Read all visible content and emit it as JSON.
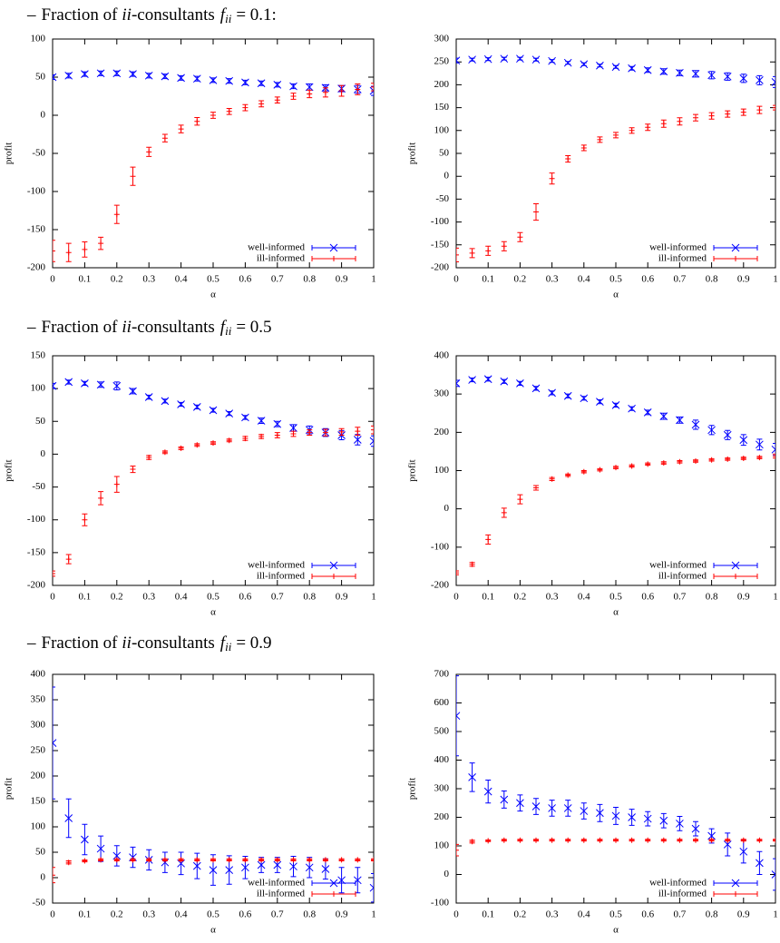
{
  "headings": [
    {
      "parts": [
        "–",
        "Fraction of",
        "ii",
        "-consultants",
        "f",
        "ii",
        "= 0.1:"
      ]
    },
    {
      "parts": [
        "–",
        "Fraction of",
        "ii",
        "-consultants",
        "f",
        "ii",
        "= 0.5"
      ]
    },
    {
      "parts": [
        "–",
        "Fraction of",
        "ii",
        "-consultants",
        "f",
        "ii",
        "= 0.9"
      ]
    }
  ],
  "chart_data": [
    {
      "type": "errorbar",
      "x_label": "α",
      "y_label": "profit",
      "legend": "lower right",
      "x": [
        0,
        0.05,
        0.1,
        0.15,
        0.2,
        0.25,
        0.3,
        0.35,
        0.4,
        0.45,
        0.5,
        0.55,
        0.6,
        0.65,
        0.7,
        0.75,
        0.8,
        0.85,
        0.9,
        0.95,
        1
      ],
      "xlim": [
        0,
        1
      ],
      "xticks": [
        0,
        0.1,
        0.2,
        0.3,
        0.4,
        0.5,
        0.6,
        0.7,
        0.8,
        0.9,
        1
      ],
      "ylim": [
        -200,
        100
      ],
      "yticks": [
        -200,
        -150,
        -100,
        -50,
        0,
        50,
        100
      ],
      "series": [
        {
          "name": "well-informed",
          "color": "#0000ff",
          "marker": "x",
          "values": [
            50,
            52,
            54,
            55,
            55,
            54,
            52,
            51,
            49,
            48,
            46,
            45,
            43,
            42,
            40,
            38,
            37,
            36,
            35,
            34,
            32
          ],
          "errors": [
            3,
            3,
            3,
            3,
            3,
            3,
            3,
            3,
            3,
            3,
            3,
            3,
            3,
            3,
            3,
            3,
            4,
            4,
            4,
            5,
            6
          ]
        },
        {
          "name": "ill-informed",
          "color": "#ff0000",
          "marker": "+",
          "values": [
            -178,
            -180,
            -176,
            -168,
            -130,
            -80,
            -48,
            -30,
            -18,
            -8,
            0,
            5,
            10,
            15,
            20,
            25,
            28,
            30,
            32,
            34,
            37
          ],
          "errors": [
            14,
            12,
            10,
            8,
            12,
            12,
            6,
            5,
            5,
            5,
            4,
            4,
            4,
            4,
            4,
            4,
            5,
            6,
            7,
            7,
            5
          ]
        }
      ]
    },
    {
      "type": "errorbar",
      "x_label": "α",
      "y_label": "profit",
      "legend": "lower right",
      "x": [
        0,
        0.05,
        0.1,
        0.15,
        0.2,
        0.25,
        0.3,
        0.35,
        0.4,
        0.45,
        0.5,
        0.55,
        0.6,
        0.65,
        0.7,
        0.75,
        0.8,
        0.85,
        0.9,
        0.95,
        1
      ],
      "xlim": [
        0,
        1
      ],
      "xticks": [
        0,
        0.1,
        0.2,
        0.3,
        0.4,
        0.5,
        0.6,
        0.7,
        0.8,
        0.9,
        1
      ],
      "ylim": [
        -200,
        300
      ],
      "yticks": [
        -200,
        -150,
        -100,
        -50,
        0,
        50,
        100,
        150,
        200,
        250,
        300
      ],
      "series": [
        {
          "name": "well-informed",
          "color": "#0000ff",
          "marker": "x",
          "values": [
            253,
            255,
            256,
            257,
            257,
            255,
            252,
            248,
            245,
            242,
            239,
            236,
            232,
            229,
            226,
            224,
            221,
            218,
            214,
            210,
            206
          ],
          "errors": [
            5,
            3,
            3,
            3,
            3,
            3,
            3,
            3,
            3,
            3,
            3,
            4,
            5,
            6,
            6,
            7,
            8,
            8,
            9,
            10,
            12
          ]
        },
        {
          "name": "ill-informed",
          "color": "#ff0000",
          "marker": "+",
          "values": [
            -172,
            -168,
            -163,
            -153,
            -133,
            -78,
            -5,
            38,
            62,
            80,
            90,
            100,
            107,
            115,
            120,
            128,
            132,
            136,
            140,
            145,
            150
          ],
          "errors": [
            15,
            10,
            10,
            10,
            10,
            18,
            12,
            7,
            6,
            6,
            6,
            6,
            7,
            8,
            8,
            7,
            7,
            7,
            7,
            8,
            5
          ]
        }
      ]
    },
    {
      "type": "errorbar",
      "x_label": "α",
      "y_label": "profit",
      "legend": "lower right",
      "x": [
        0,
        0.05,
        0.1,
        0.15,
        0.2,
        0.25,
        0.3,
        0.35,
        0.4,
        0.45,
        0.5,
        0.55,
        0.6,
        0.65,
        0.7,
        0.75,
        0.8,
        0.85,
        0.9,
        0.95,
        1
      ],
      "xlim": [
        0,
        1
      ],
      "xticks": [
        0,
        0.1,
        0.2,
        0.3,
        0.4,
        0.5,
        0.6,
        0.7,
        0.8,
        0.9,
        1
      ],
      "ylim": [
        -200,
        150
      ],
      "yticks": [
        -200,
        -150,
        -100,
        -50,
        0,
        50,
        100,
        150
      ],
      "series": [
        {
          "name": "well-informed",
          "color": "#0000ff",
          "marker": "x",
          "values": [
            104,
            110,
            108,
            106,
            104,
            96,
            87,
            81,
            76,
            72,
            67,
            62,
            56,
            51,
            46,
            40,
            37,
            33,
            29,
            22,
            20
          ],
          "errors": [
            4,
            3,
            3,
            4,
            6,
            4,
            3,
            3,
            3,
            3,
            3,
            3,
            3,
            4,
            4,
            5,
            6,
            6,
            7,
            8,
            8
          ]
        },
        {
          "name": "ill-informed",
          "color": "#ff0000",
          "marker": "+",
          "values": [
            -182,
            -160,
            -100,
            -67,
            -46,
            -23,
            -5,
            3,
            9,
            14,
            17,
            21,
            24,
            27,
            29,
            31,
            33,
            33,
            34,
            35,
            37
          ],
          "errors": [
            4,
            7,
            9,
            10,
            12,
            5,
            3,
            2,
            2,
            2,
            2,
            2,
            3,
            3,
            4,
            4,
            4,
            5,
            5,
            6,
            6
          ]
        }
      ]
    },
    {
      "type": "errorbar",
      "x_label": "α",
      "y_label": "profit",
      "legend": "lower right",
      "x": [
        0,
        0.05,
        0.1,
        0.15,
        0.2,
        0.25,
        0.3,
        0.35,
        0.4,
        0.45,
        0.5,
        0.55,
        0.6,
        0.65,
        0.7,
        0.75,
        0.8,
        0.85,
        0.9,
        0.95,
        1
      ],
      "xlim": [
        0,
        1
      ],
      "xticks": [
        0,
        0.1,
        0.2,
        0.3,
        0.4,
        0.5,
        0.6,
        0.7,
        0.8,
        0.9,
        1
      ],
      "ylim": [
        -200,
        400
      ],
      "yticks": [
        -200,
        -100,
        0,
        100,
        200,
        300,
        400
      ],
      "series": [
        {
          "name": "well-informed",
          "color": "#0000ff",
          "marker": "x",
          "values": [
            328,
            337,
            339,
            333,
            328,
            315,
            303,
            295,
            289,
            280,
            271,
            262,
            252,
            242,
            232,
            220,
            206,
            193,
            180,
            168,
            155
          ],
          "errors": [
            8,
            5,
            5,
            5,
            5,
            5,
            5,
            5,
            5,
            5,
            5,
            5,
            6,
            8,
            8,
            12,
            12,
            12,
            14,
            14,
            16
          ]
        },
        {
          "name": "ill-informed",
          "color": "#ff0000",
          "marker": "+",
          "values": [
            -167,
            -145,
            -80,
            -10,
            25,
            55,
            78,
            88,
            97,
            102,
            108,
            112,
            117,
            120,
            123,
            125,
            128,
            130,
            132,
            134,
            138
          ],
          "errors": [
            5,
            5,
            12,
            12,
            12,
            6,
            4,
            3,
            3,
            3,
            3,
            3,
            3,
            3,
            3,
            3,
            3,
            3,
            3,
            3,
            5
          ]
        }
      ]
    },
    {
      "type": "errorbar",
      "x_label": "α",
      "y_label": "profit",
      "legend": "lower right",
      "x": [
        0,
        0.05,
        0.1,
        0.15,
        0.2,
        0.25,
        0.3,
        0.35,
        0.4,
        0.45,
        0.5,
        0.55,
        0.6,
        0.65,
        0.7,
        0.75,
        0.8,
        0.85,
        0.9,
        0.95,
        1
      ],
      "xlim": [
        0,
        1
      ],
      "xticks": [
        0,
        0.1,
        0.2,
        0.3,
        0.4,
        0.5,
        0.6,
        0.7,
        0.8,
        0.9,
        1
      ],
      "ylim": [
        -50,
        400
      ],
      "yticks": [
        -50,
        0,
        50,
        100,
        150,
        200,
        250,
        300,
        350,
        400
      ],
      "series": [
        {
          "name": "well-informed",
          "color": "#0000ff",
          "marker": "x",
          "values": [
            265,
            117,
            75,
            57,
            43,
            40,
            35,
            30,
            28,
            23,
            15,
            15,
            20,
            25,
            25,
            22,
            20,
            17,
            -5,
            -5,
            -20
          ],
          "errors": [
            110,
            38,
            30,
            25,
            20,
            20,
            20,
            20,
            22,
            25,
            30,
            28,
            22,
            15,
            15,
            20,
            20,
            20,
            25,
            25,
            28
          ]
        },
        {
          "name": "ill-informed",
          "color": "#ff0000",
          "marker": "+",
          "values": [
            5,
            30,
            33,
            35,
            35,
            35,
            35,
            35,
            35,
            35,
            35,
            35,
            35,
            35,
            35,
            35,
            35,
            35,
            35,
            35,
            35
          ],
          "errors": [
            15,
            3,
            2,
            2,
            2,
            2,
            2,
            2,
            2,
            2,
            2,
            2,
            2,
            2,
            2,
            2,
            2,
            2,
            2,
            2,
            2
          ]
        }
      ]
    },
    {
      "type": "errorbar",
      "x_label": "α",
      "y_label": "profit",
      "legend": "lower right",
      "x": [
        0,
        0.05,
        0.1,
        0.15,
        0.2,
        0.25,
        0.3,
        0.35,
        0.4,
        0.45,
        0.5,
        0.55,
        0.6,
        0.65,
        0.7,
        0.75,
        0.8,
        0.85,
        0.9,
        0.95,
        1
      ],
      "xlim": [
        0,
        1
      ],
      "xticks": [
        0,
        0.1,
        0.2,
        0.3,
        0.4,
        0.5,
        0.6,
        0.7,
        0.8,
        0.9,
        1
      ],
      "ylim": [
        -100,
        700
      ],
      "yticks": [
        -100,
        0,
        100,
        200,
        300,
        400,
        500,
        600,
        700
      ],
      "series": [
        {
          "name": "well-informed",
          "color": "#0000ff",
          "marker": "x",
          "values": [
            555,
            340,
            290,
            262,
            250,
            238,
            232,
            232,
            222,
            215,
            205,
            200,
            195,
            188,
            178,
            160,
            135,
            105,
            80,
            40,
            0
          ],
          "errors": [
            140,
            50,
            40,
            30,
            28,
            28,
            28,
            28,
            28,
            30,
            30,
            28,
            25,
            25,
            25,
            25,
            25,
            40,
            40,
            40,
            55
          ]
        },
        {
          "name": "ill-informed",
          "color": "#ff0000",
          "marker": "+",
          "values": [
            85,
            115,
            118,
            120,
            120,
            120,
            120,
            120,
            120,
            120,
            120,
            120,
            120,
            120,
            120,
            120,
            120,
            120,
            120,
            120,
            120
          ],
          "errors": [
            20,
            5,
            3,
            3,
            3,
            3,
            3,
            3,
            3,
            3,
            3,
            3,
            3,
            3,
            3,
            3,
            3,
            3,
            3,
            3,
            3
          ]
        }
      ]
    }
  ]
}
